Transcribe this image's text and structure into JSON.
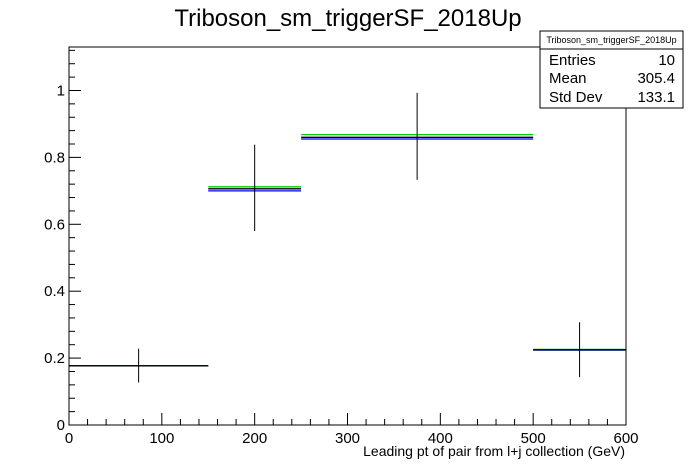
{
  "chart_data": {
    "type": "histogram",
    "title": "Triboson_sm_triggerSF_2018Up",
    "xlabel": "Leading pt of pair from l+j collection (GeV)",
    "ylabel": "",
    "xlim": [
      0,
      600
    ],
    "ylim": [
      0,
      1.13
    ],
    "x_ticks": [
      "0",
      "100",
      "200",
      "300",
      "400",
      "500",
      "600"
    ],
    "y_ticks": [
      "0",
      "0.2",
      "0.4",
      "0.6",
      "0.8",
      "1"
    ],
    "bins": [
      {
        "x_low": 0,
        "x_high": 150,
        "x_center": 75,
        "value": 0.177,
        "err_low": 0.127,
        "err_high": 0.228
      },
      {
        "x_low": 150,
        "x_high": 250,
        "x_center": 200,
        "value": 0.706,
        "err_low": 0.58,
        "err_high": 0.838
      },
      {
        "x_low": 250,
        "x_high": 500,
        "x_center": 375,
        "value": 0.86,
        "err_low": 0.733,
        "err_high": 0.993
      },
      {
        "x_low": 500,
        "x_high": 600,
        "x_center": 550,
        "value": 0.225,
        "err_low": 0.143,
        "err_high": 0.307
      }
    ],
    "series": [
      {
        "color": "#0000ff",
        "values": [
          0.177,
          0.7,
          0.855,
          0.224
        ]
      },
      {
        "color": "#00cc00",
        "values": [
          0.177,
          0.712,
          0.868,
          0.226
        ]
      },
      {
        "color": "#000000",
        "values": [
          0.177,
          0.706,
          0.86,
          0.225
        ]
      }
    ],
    "stats": {
      "name": "Triboson_sm_triggerSF_2018Up",
      "rows": [
        {
          "label": "Entries",
          "value": "10"
        },
        {
          "label": "Mean",
          "value": "305.4"
        },
        {
          "label": "Std Dev",
          "value": "133.1"
        }
      ]
    }
  }
}
